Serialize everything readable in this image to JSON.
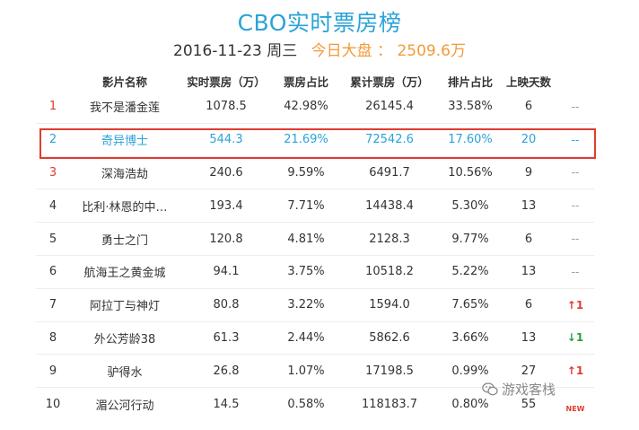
{
  "header": {
    "title": "CBO实时票房榜",
    "date": "2016-11-23",
    "weekday": "周三",
    "total_label": "今日大盘 ：",
    "total_value": "2509.6万"
  },
  "columns": [
    "影片名称",
    "实时票房（万）",
    "票房占比",
    "累计票房（万）",
    "排片占比",
    "上映天数"
  ],
  "rows": [
    {
      "rank": "1",
      "name": "我不是潘金莲",
      "box": "1078.5",
      "share": "42.98%",
      "cumulative": "26145.4",
      "screen": "33.58%",
      "days": "6",
      "trend": "--",
      "trend_type": "flat",
      "highlight": false
    },
    {
      "rank": "2",
      "name": "奇异博士",
      "box": "544.3",
      "share": "21.69%",
      "cumulative": "72542.6",
      "screen": "17.60%",
      "days": "20",
      "trend": "--",
      "trend_type": "flat",
      "highlight": true
    },
    {
      "rank": "3",
      "name": "深海浩劫",
      "box": "240.6",
      "share": "9.59%",
      "cumulative": "6491.7",
      "screen": "10.56%",
      "days": "9",
      "trend": "--",
      "trend_type": "flat",
      "highlight": false
    },
    {
      "rank": "4",
      "name": "比利·林恩的中…",
      "box": "193.4",
      "share": "7.71%",
      "cumulative": "14438.4",
      "screen": "5.30%",
      "days": "13",
      "trend": "--",
      "trend_type": "flat",
      "highlight": false
    },
    {
      "rank": "5",
      "name": "勇士之门",
      "box": "120.8",
      "share": "4.81%",
      "cumulative": "2128.3",
      "screen": "9.77%",
      "days": "6",
      "trend": "--",
      "trend_type": "flat",
      "highlight": false
    },
    {
      "rank": "6",
      "name": "航海王之黄金城",
      "box": "94.1",
      "share": "3.75%",
      "cumulative": "10518.2",
      "screen": "5.22%",
      "days": "13",
      "trend": "--",
      "trend_type": "flat",
      "highlight": false
    },
    {
      "rank": "7",
      "name": "阿拉丁与神灯",
      "box": "80.8",
      "share": "3.22%",
      "cumulative": "1594.0",
      "screen": "7.65%",
      "days": "6",
      "trend": "↑1",
      "trend_type": "up",
      "highlight": false
    },
    {
      "rank": "8",
      "name": "外公芳龄38",
      "box": "61.3",
      "share": "2.44%",
      "cumulative": "5862.6",
      "screen": "3.66%",
      "days": "13",
      "trend": "↓1",
      "trend_type": "down",
      "highlight": false
    },
    {
      "rank": "9",
      "name": "驴得水",
      "box": "26.8",
      "share": "1.07%",
      "cumulative": "17198.5",
      "screen": "0.99%",
      "days": "27",
      "trend": "↑1",
      "trend_type": "up",
      "highlight": false
    },
    {
      "rank": "10",
      "name": "湄公河行动",
      "box": "14.5",
      "share": "0.58%",
      "cumulative": "118183.7",
      "screen": "0.80%",
      "days": "55",
      "trend": "NEW",
      "trend_type": "new",
      "highlight": false
    }
  ],
  "watermark": {
    "text": "游戏客栈",
    "icon": "wechat-icon"
  },
  "colors": {
    "accent": "#2aa3d8",
    "orange": "#f39a3a",
    "red": "#e03c31",
    "green": "#2e9e3a"
  }
}
